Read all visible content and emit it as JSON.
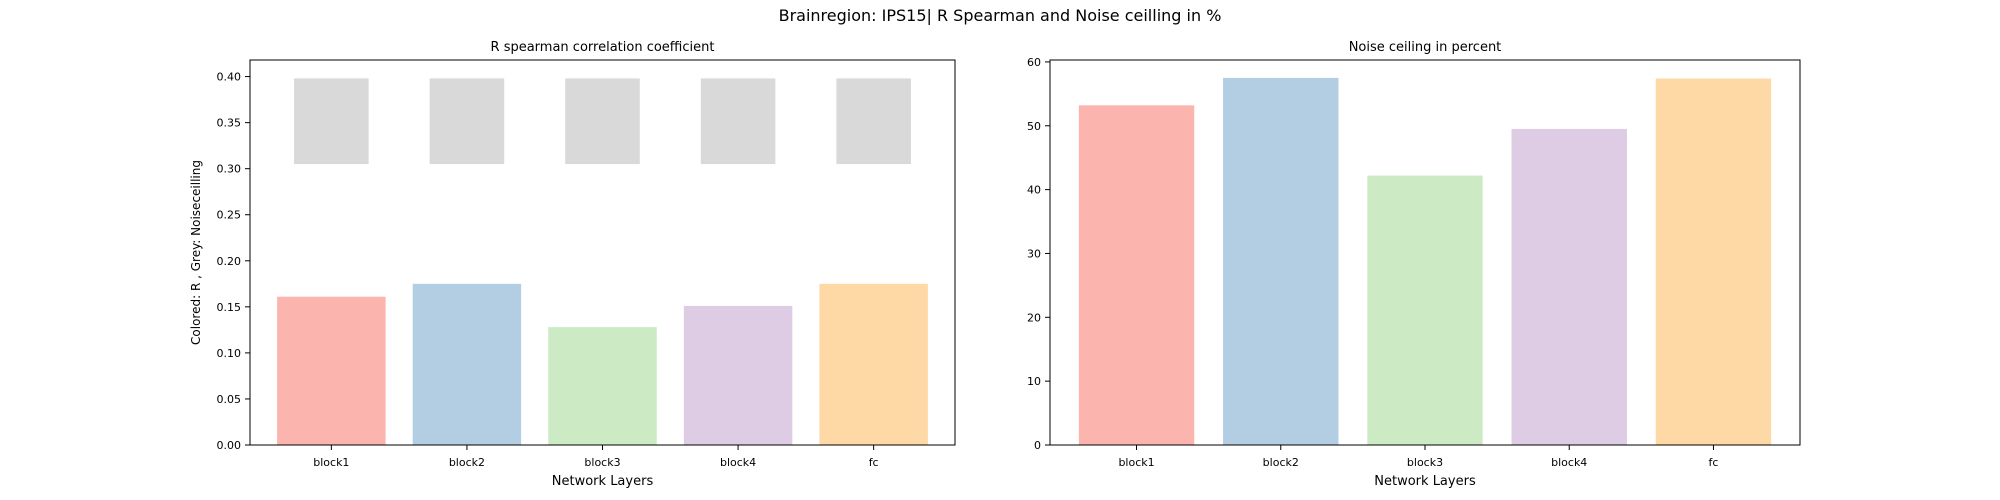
{
  "figure": {
    "suptitle": "Brainregion: IPS15| R Spearman and Noise ceilling in %"
  },
  "chart_data": [
    {
      "type": "bar",
      "title": "R spearman correlation coefficient",
      "xlabel": "Network Layers",
      "ylabel": "Colored: R , Grey: Noiseceilling",
      "categories": [
        "block1",
        "block2",
        "block3",
        "block4",
        "fc"
      ],
      "series": [
        {
          "role": "colored",
          "values": [
            0.161,
            0.175,
            0.128,
            0.151,
            0.175
          ],
          "colors": [
            "#fbb4ae",
            "#b3cde3",
            "#ccebc5",
            "#decbe4",
            "#fed9a6"
          ]
        },
        {
          "role": "grey",
          "lower": [
            0.305,
            0.305,
            0.305,
            0.305,
            0.305
          ],
          "upper": [
            0.398,
            0.398,
            0.398,
            0.398,
            0.398
          ],
          "color": "#d9d9d9"
        }
      ],
      "ylim": [
        0,
        0.418
      ],
      "yticks": [
        "0.00",
        "0.05",
        "0.10",
        "0.15",
        "0.20",
        "0.25",
        "0.30",
        "0.35",
        "0.40"
      ],
      "grid": false
    },
    {
      "type": "bar",
      "title": "Noise ceiling in percent",
      "xlabel": "Network Layers",
      "ylabel": "",
      "categories": [
        "block1",
        "block2",
        "block3",
        "block4",
        "fc"
      ],
      "series": [
        {
          "values": [
            53.2,
            57.5,
            42.2,
            49.5,
            57.4
          ],
          "colors": [
            "#fbb4ae",
            "#b3cde3",
            "#ccebc5",
            "#decbe4",
            "#fed9a6"
          ]
        }
      ],
      "ylim": [
        0,
        60.3
      ],
      "yticks": [
        "0",
        "10",
        "20",
        "30",
        "40",
        "50",
        "60"
      ],
      "grid": false
    }
  ]
}
